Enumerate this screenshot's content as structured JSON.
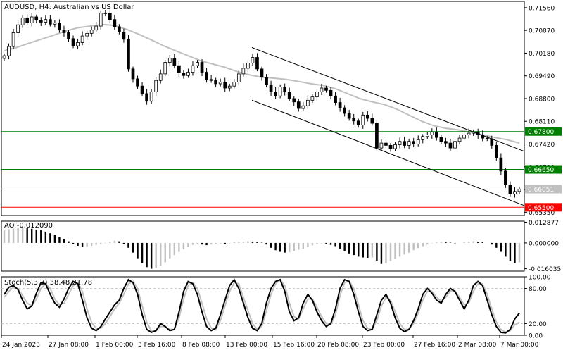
{
  "symbol_header": "AUDUSD, H4:  Australian vs US Dollar",
  "ao_header": "AO -0.012090",
  "stoch_header": "Stoch(5,3,3) 38.48 21.78",
  "colors": {
    "background": "#ffffff",
    "candle": "#000000",
    "moving_average": "#c0c0c0",
    "channel": "#000000",
    "resistance_line": "#008000",
    "support_line": "#ff0000",
    "current_price_line": "#c0c0c0",
    "ao_up": "#c0c0c0",
    "ao_down": "#000000",
    "stoch_main": "#000000",
    "stoch_signal": "#c0c0c0"
  },
  "chart_data": [
    {
      "type": "candlestick",
      "title": "AUDUSD, H4:  Australian vs US Dollar",
      "y_tick_labels": [
        "0.71560",
        "0.70870",
        "0.70180",
        "0.69490",
        "0.68800",
        "0.68110",
        "0.67420",
        "0.66730",
        "0.66040",
        "0.65350"
      ],
      "ylim": [
        0.6525,
        0.7175
      ],
      "x_tick_labels": [
        "24 Jan 2023",
        "27 Jan 08:00",
        "1 Feb 00:00",
        "3 Feb 16:00",
        "8 Feb 08:00",
        "13 Feb 00:00",
        "15 Feb 16:00",
        "20 Feb 08:00",
        "23 Feb 00:00",
        "27 Feb 16:00",
        "2 Mar 08:00",
        "7 Mar 00:00"
      ],
      "closes": [
        0.701,
        0.7038,
        0.708,
        0.7104,
        0.7125,
        0.711,
        0.7128,
        0.7118,
        0.7112,
        0.712,
        0.7106,
        0.711,
        0.7088,
        0.708,
        0.7062,
        0.704,
        0.705,
        0.707,
        0.7078,
        0.7088,
        0.71,
        0.714,
        0.7138,
        0.712,
        0.7098,
        0.7082,
        0.706,
        0.697,
        0.694,
        0.6918,
        0.6895,
        0.6872,
        0.69,
        0.6935,
        0.6955,
        0.699,
        0.7003,
        0.698,
        0.6958,
        0.695,
        0.696,
        0.698,
        0.699,
        0.696,
        0.6938,
        0.6935,
        0.6925,
        0.693,
        0.6912,
        0.6918,
        0.693,
        0.6955,
        0.6972,
        0.6988,
        0.7005,
        0.697,
        0.6945,
        0.6922,
        0.69,
        0.6888,
        0.6915,
        0.69,
        0.688,
        0.687,
        0.685,
        0.6858,
        0.6875,
        0.6885,
        0.69,
        0.6912,
        0.6905,
        0.6888,
        0.6868,
        0.6852,
        0.6835,
        0.682,
        0.6812,
        0.68,
        0.683,
        0.682,
        0.6805,
        0.673,
        0.6745,
        0.6738,
        0.6728,
        0.674,
        0.675,
        0.6738,
        0.675,
        0.6742,
        0.6755,
        0.6765,
        0.677,
        0.6778,
        0.6762,
        0.675,
        0.6745,
        0.673,
        0.675,
        0.676,
        0.677,
        0.6775,
        0.6778,
        0.677,
        0.676,
        0.6758,
        0.6738,
        0.67,
        0.666,
        0.6618,
        0.659,
        0.6598,
        0.6605
      ],
      "series": [
        {
          "name": "",
          "values": [
            0.7025,
            0.7035,
            0.7048,
            0.706,
            0.7072,
            0.7085,
            0.7095,
            0.71,
            0.7105,
            0.7102,
            0.709,
            0.7075,
            0.7058,
            0.704,
            0.7025,
            0.701,
            0.6995,
            0.6985,
            0.6975,
            0.6962,
            0.6952,
            0.6945,
            0.6942,
            0.6938,
            0.6932,
            0.6925,
            0.692,
            0.691,
            0.6895,
            0.688,
            0.687,
            0.6862,
            0.6848,
            0.683,
            0.6812,
            0.6798,
            0.679,
            0.6785,
            0.6778,
            0.677,
            0.6762,
            0.6755,
            0.6745
          ]
        }
      ],
      "horizontal_levels": [
        {
          "label": "0.67800",
          "value": 0.678,
          "color": "#008000"
        },
        {
          "label": "0.66650",
          "value": 0.6665,
          "color": "#008000"
        },
        {
          "label": "0.66051",
          "value": 0.66051,
          "color": "#c0c0c0"
        },
        {
          "label": "0.65500",
          "value": 0.655,
          "color": "#ff0000"
        }
      ],
      "channel_lines": [
        {
          "name": "upper",
          "from": {
            "x": "13 Feb 00:00",
            "y": 0.7035
          },
          "to": {
            "x": "7 Mar 00:00",
            "y": 0.672
          }
        },
        {
          "name": "lower",
          "from": {
            "x": "13 Feb 00:00",
            "y": 0.6875
          },
          "to": {
            "x": "7 Mar 00:00",
            "y": 0.6555
          }
        }
      ],
      "grid": false
    },
    {
      "type": "bar",
      "title": "AO -0.012090",
      "y_tick_labels": [
        "0.012877",
        "0.000000",
        "-0.016035"
      ],
      "ylim": [
        -0.0175,
        0.0135
      ],
      "values": [
        0.0078,
        0.0085,
        0.009,
        0.0092,
        0.0094,
        0.0091,
        0.0088,
        0.0083,
        0.0078,
        0.007,
        0.006,
        0.0048,
        0.0035,
        0.0022,
        0.001,
        -0.0005,
        -0.0018,
        -0.0025,
        -0.0022,
        -0.0018,
        -0.0012,
        -0.0008,
        -0.0002,
        0.0006,
        0.0014,
        0.001,
        -0.0006,
        -0.003,
        -0.006,
        -0.0095,
        -0.0125,
        -0.015,
        -0.016,
        -0.0155,
        -0.014,
        -0.012,
        -0.0095,
        -0.0075,
        -0.0055,
        -0.004,
        -0.0025,
        -0.0012,
        -0.0005,
        -0.001,
        -0.0014,
        -0.001,
        -0.0006,
        -0.0004,
        -0.0005,
        -0.0002,
        0.0004,
        0.0006,
        0.0008,
        0.001,
        0.0008,
        0.0004,
        0.0002,
        -0.001,
        -0.003,
        -0.0045,
        -0.0055,
        -0.006,
        -0.0058,
        -0.005,
        -0.0042,
        -0.0035,
        -0.0025,
        -0.0015,
        -0.0008,
        -0.0003,
        -0.0005,
        -0.0012,
        -0.002,
        -0.0035,
        -0.005,
        -0.0065,
        -0.0075,
        -0.0085,
        -0.009,
        -0.0092,
        -0.009,
        -0.011,
        -0.013,
        -0.0125,
        -0.0112,
        -0.01,
        -0.0085,
        -0.0072,
        -0.006,
        -0.0045,
        -0.0032,
        -0.002,
        -0.001,
        -0.0002,
        0.0003,
        0.0006,
        0.0005,
        0.0002,
        -0.0002,
        0.0,
        0.0004,
        0.0008,
        0.001,
        0.0008,
        0.0004,
        0.0,
        -0.001,
        -0.003,
        -0.0055,
        -0.0085,
        -0.011,
        -0.0125,
        -0.012
      ]
    },
    {
      "type": "line",
      "title": "Stoch(5,3,3) 38.48 21.78",
      "y_tick_labels": [
        "100.00",
        "80.00",
        "20.00",
        "0.00"
      ],
      "ylim": [
        0,
        100
      ],
      "levels": [
        80,
        20
      ],
      "series": [
        {
          "name": "",
          "values": [
            70,
            82,
            85,
            78,
            60,
            45,
            50,
            72,
            90,
            88,
            70,
            55,
            48,
            62,
            80,
            92,
            88,
            60,
            30,
            12,
            8,
            15,
            28,
            40,
            52,
            60,
            80,
            95,
            90,
            70,
            35,
            10,
            5,
            8,
            20,
            15,
            8,
            10,
            40,
            75,
            92,
            88,
            70,
            40,
            15,
            8,
            12,
            35,
            60,
            85,
            95,
            80,
            55,
            30,
            12,
            8,
            20,
            55,
            80,
            92,
            95,
            75,
            40,
            25,
            30,
            55,
            70,
            60,
            40,
            25,
            15,
            20,
            45,
            80,
            95,
            92,
            70,
            40,
            15,
            8,
            10,
            35,
            60,
            70,
            55,
            30,
            12,
            6,
            10,
            25,
            45,
            70,
            80,
            72,
            60,
            55,
            70,
            80,
            75,
            60,
            45,
            60,
            85,
            92,
            85,
            60,
            35,
            15,
            5,
            4,
            10,
            28,
            38
          ]
        },
        {
          "name": "",
          "values": [
            65,
            75,
            82,
            80,
            68,
            55,
            50,
            62,
            80,
            88,
            80,
            62,
            52,
            55,
            70,
            85,
            90,
            75,
            45,
            22,
            12,
            12,
            20,
            32,
            45,
            55,
            70,
            88,
            92,
            80,
            50,
            22,
            8,
            8,
            15,
            15,
            10,
            10,
            30,
            62,
            85,
            90,
            80,
            55,
            28,
            12,
            10,
            25,
            50,
            75,
            90,
            88,
            65,
            42,
            20,
            10,
            15,
            42,
            70,
            88,
            95,
            85,
            55,
            32,
            28,
            45,
            62,
            62,
            48,
            32,
            20,
            18,
            35,
            68,
            90,
            93,
            80,
            52,
            25,
            12,
            10,
            25,
            50,
            65,
            60,
            40,
            20,
            10,
            10,
            20,
            38,
            60,
            75,
            75,
            65,
            58,
            65,
            76,
            76,
            65,
            52,
            55,
            75,
            88,
            88,
            70,
            45,
            22,
            10,
            5,
            8,
            18,
            22
          ]
        }
      ]
    }
  ]
}
